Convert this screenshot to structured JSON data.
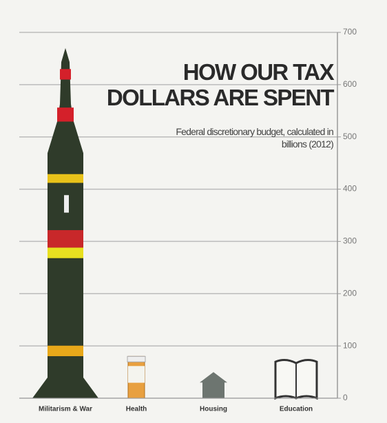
{
  "chart_data": {
    "type": "pictorial-bar",
    "title": "HOW OUR TAX DOLLARS ARE SPENT",
    "subtitle": "Federal discretionary budget, calculated in billions (2012)",
    "categories": [
      "Militarism & War",
      "Health",
      "Housing",
      "Education"
    ],
    "values": [
      670,
      80,
      50,
      75
    ],
    "ylim": [
      0,
      700
    ],
    "yticks": [
      0,
      100,
      200,
      300,
      400,
      500,
      600,
      700
    ],
    "grid": true,
    "color": "#2f3b2a"
  }
}
